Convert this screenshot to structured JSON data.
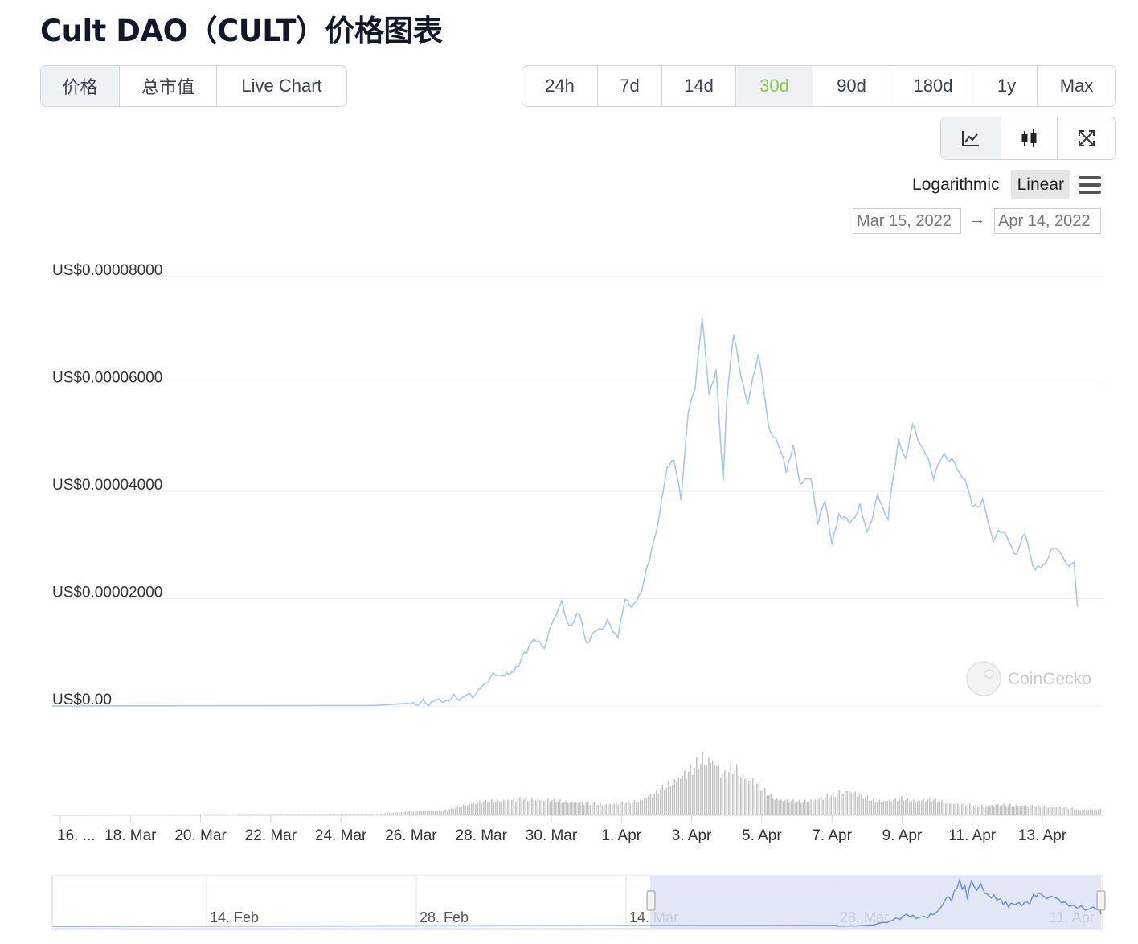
{
  "title": "Cult DAO（CULT）价格图表",
  "metric_tabs": [
    {
      "label": "价格",
      "active": true
    },
    {
      "label": "总市值",
      "active": false
    },
    {
      "label": "Live Chart",
      "active": false
    }
  ],
  "range_tabs": [
    {
      "label": "24h",
      "active": false
    },
    {
      "label": "7d",
      "active": false
    },
    {
      "label": "14d",
      "active": false
    },
    {
      "label": "30d",
      "active": true
    },
    {
      "label": "90d",
      "active": false
    },
    {
      "label": "180d",
      "active": false
    },
    {
      "label": "1y",
      "active": false
    },
    {
      "label": "Max",
      "active": false
    }
  ],
  "chart_type_icons": [
    "line-chart-icon",
    "candlestick-icon",
    "fullscreen-icon"
  ],
  "scale": {
    "log_label": "Logarithmic",
    "linear_label": "Linear",
    "active": "Linear"
  },
  "date_range": {
    "from": "Mar 15, 2022",
    "to": "Apr 14, 2022",
    "arrow": "→"
  },
  "watermark": "CoinGecko",
  "colors": {
    "price_line": "#a7c8ee",
    "volume": "#c4c4c4",
    "active_range": "#8dc647",
    "navigator_band": "#dde3f4"
  },
  "chart_data": {
    "type": "line",
    "y_tick_labels": [
      "US$0.00008000",
      "US$0.00006000",
      "US$0.00004000",
      "US$0.00002000",
      "US$0.00"
    ],
    "ylim": [
      0,
      8e-05
    ],
    "x_tick_labels": [
      "16. ...",
      "18. Mar",
      "20. Mar",
      "22. Mar",
      "24. Mar",
      "26. Mar",
      "28. Mar",
      "30. Mar",
      "1. Apr",
      "3. Apr",
      "5. Apr",
      "7. Apr",
      "9. Apr",
      "11. Apr",
      "13. Apr"
    ],
    "x_tick_days": [
      1,
      3,
      5,
      7,
      9,
      11,
      13,
      15,
      17,
      19,
      21,
      23,
      25,
      27,
      29
    ],
    "xlim_days": [
      1,
      30
    ],
    "price_series": {
      "days": [
        0.0,
        10.0,
        10.9,
        11.0,
        11.2,
        11.5,
        11.8,
        12.0,
        12.3,
        12.6,
        12.9,
        13.2,
        13.5,
        13.8,
        14.0,
        14.3,
        14.5,
        14.8,
        15.0,
        15.3,
        15.5,
        15.8,
        16.0,
        16.3,
        16.6,
        16.9,
        17.1,
        17.3,
        17.5,
        17.8,
        18.0,
        18.3,
        18.5,
        18.7,
        18.9,
        19.1,
        19.3,
        19.5,
        19.7,
        19.9,
        20.0,
        20.2,
        20.4,
        20.6,
        20.9,
        21.2,
        21.4,
        21.7,
        21.9,
        22.1,
        22.4,
        22.6,
        22.8,
        23.0,
        23.2,
        23.5,
        23.8,
        24.0,
        24.3,
        24.6,
        24.9,
        25.1,
        25.3,
        25.6,
        25.9,
        26.2,
        26.5,
        26.8,
        27.0,
        27.3,
        27.6,
        27.9,
        28.2,
        28.5,
        28.8,
        29.1,
        29.4,
        29.7,
        29.9,
        30.0
      ],
      "values": [
        0.0,
        1e-07,
        5e-07,
        1e-06,
        5e-07,
        6e-07,
        1e-06,
        1.2e-06,
        1.5e-06,
        1.8e-06,
        2.5e-06,
        5e-06,
        6e-06,
        5.5e-06,
        7.5e-06,
        1e-05,
        1.3e-05,
        1.05e-05,
        1.55e-05,
        1.9e-05,
        1.5e-05,
        1.7e-05,
        1.2e-05,
        1.4e-05,
        1.55e-05,
        1.3e-05,
        1.95e-05,
        1.8e-05,
        2.05e-05,
        2.7e-05,
        3.3e-05,
        4.4e-05,
        4.6e-05,
        3.9e-05,
        5.5e-05,
        5.9e-05,
        7.2e-05,
        5.8e-05,
        6.3e-05,
        4.2e-05,
        5.7e-05,
        7e-05,
        6.2e-05,
        5.6e-05,
        6.6e-05,
        5.2e-05,
        5e-05,
        4.4e-05,
        4.9e-05,
        4.1e-05,
        4.3e-05,
        3.4e-05,
        3.8e-05,
        3e-05,
        3.6e-05,
        3.4e-05,
        3.7e-05,
        3.2e-05,
        3.9e-05,
        3.5e-05,
        5e-05,
        4.6e-05,
        5.2e-05,
        4.8e-05,
        4.3e-05,
        4.7e-05,
        4.5e-05,
        4.2e-05,
        3.7e-05,
        3.8e-05,
        3.1e-05,
        3.3e-05,
        2.8e-05,
        3.2e-05,
        2.5e-05,
        2.7e-05,
        3e-05,
        2.6e-05,
        2.7e-05,
        1.85e-05
      ]
    },
    "volume_series": {
      "days": [
        0.0,
        10.0,
        10.9,
        11.5,
        12.0,
        12.5,
        13.0,
        13.5,
        14.0,
        14.5,
        15.0,
        15.5,
        16.0,
        16.5,
        17.0,
        17.5,
        18.0,
        18.5,
        19.0,
        19.3,
        19.6,
        19.9,
        20.2,
        20.5,
        20.8,
        21.1,
        21.4,
        21.7,
        22.0,
        22.3,
        22.6,
        23.0,
        23.4,
        23.8,
        24.2,
        24.6,
        25.0,
        25.4,
        25.8,
        26.2,
        26.6,
        27.0,
        27.4,
        27.8,
        28.2,
        28.6,
        29.0,
        29.4,
        29.8,
        30.0
      ],
      "relative": [
        0.0,
        0.01,
        0.05,
        0.06,
        0.07,
        0.15,
        0.2,
        0.22,
        0.24,
        0.25,
        0.22,
        0.2,
        0.18,
        0.16,
        0.18,
        0.22,
        0.35,
        0.55,
        0.7,
        0.9,
        0.85,
        0.6,
        0.75,
        0.6,
        0.5,
        0.35,
        0.25,
        0.22,
        0.2,
        0.22,
        0.25,
        0.3,
        0.4,
        0.3,
        0.22,
        0.22,
        0.25,
        0.22,
        0.24,
        0.2,
        0.16,
        0.15,
        0.14,
        0.15,
        0.15,
        0.14,
        0.13,
        0.12,
        0.1,
        0.08
      ]
    }
  },
  "navigator": {
    "tick_labels": [
      "14. Feb",
      "28. Feb",
      "14. Mar",
      "28. Mar",
      "11. Apr"
    ]
  }
}
